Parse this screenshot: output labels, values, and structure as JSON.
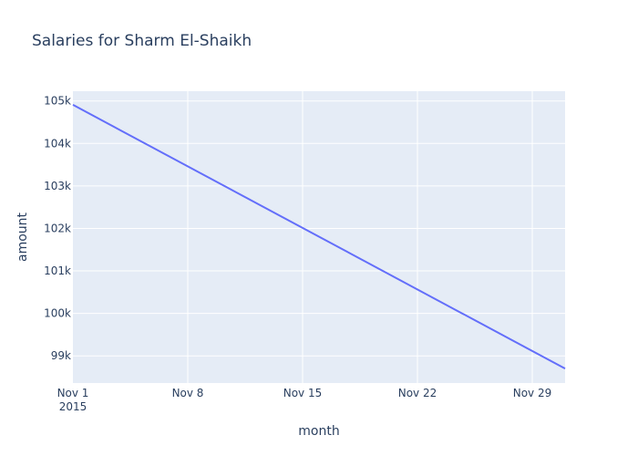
{
  "chart_data": {
    "type": "line",
    "title": "Salaries for Sharm El-Shaikh",
    "xlabel": "month",
    "ylabel": "amount",
    "x": [
      "2015-11-01",
      "2015-12-01"
    ],
    "series": [
      {
        "values": [
          104910,
          98700
        ]
      }
    ],
    "xlim": [
      "2015-11-01",
      "2015-12-01"
    ],
    "ylim": [
      98360,
      105230
    ],
    "x_ticks": [
      {
        "date": "2015-11-01",
        "label": "Nov 1",
        "sublabel": "2015"
      },
      {
        "date": "2015-11-08",
        "label": "Nov 8"
      },
      {
        "date": "2015-11-15",
        "label": "Nov 15"
      },
      {
        "date": "2015-11-22",
        "label": "Nov 22"
      },
      {
        "date": "2015-11-29",
        "label": "Nov 29"
      }
    ],
    "y_ticks": [
      {
        "value": 99000,
        "label": "99k"
      },
      {
        "value": 100000,
        "label": "100k"
      },
      {
        "value": 101000,
        "label": "101k"
      },
      {
        "value": 102000,
        "label": "102k"
      },
      {
        "value": 103000,
        "label": "103k"
      },
      {
        "value": 104000,
        "label": "104k"
      },
      {
        "value": 105000,
        "label": "105k"
      }
    ],
    "grid": true,
    "colors": {
      "line": "#636efa",
      "plot_bg": "#e5ecf6",
      "grid": "#ffffff",
      "text": "#2a3f5f"
    }
  }
}
